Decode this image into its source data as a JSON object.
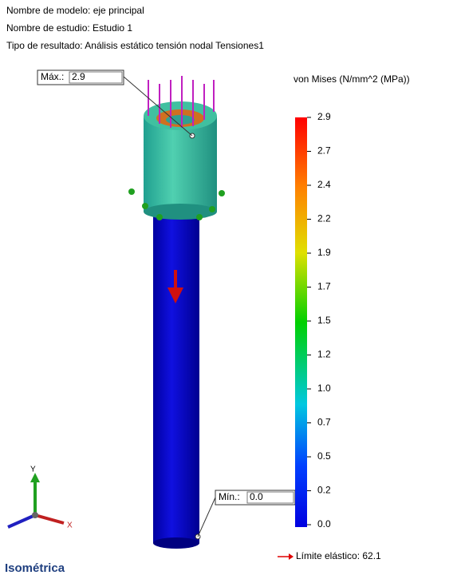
{
  "header": {
    "model": "Nombre de modelo: eje principal",
    "study": "Nombre de estudio: Estudio 1",
    "result": "Tipo de resultado: Análisis estático tensión nodal Tensiones1"
  },
  "legend": {
    "title": "von Mises (N/mm^2 (MPa))",
    "ticks": [
      "2.9",
      "2.7",
      "2.4",
      "2.2",
      "1.9",
      "1.7",
      "1.5",
      "1.2",
      "1.0",
      "0.7",
      "0.5",
      "0.2",
      "0.0"
    ],
    "yield": "Límite elástico: 62.1"
  },
  "probes": {
    "max": {
      "label": "Máx.:",
      "value": "2.9"
    },
    "min": {
      "label": "Mín.:",
      "value": "0.0"
    }
  },
  "triad": {
    "y": "Y",
    "x": "X"
  },
  "view": "Isométrica"
}
